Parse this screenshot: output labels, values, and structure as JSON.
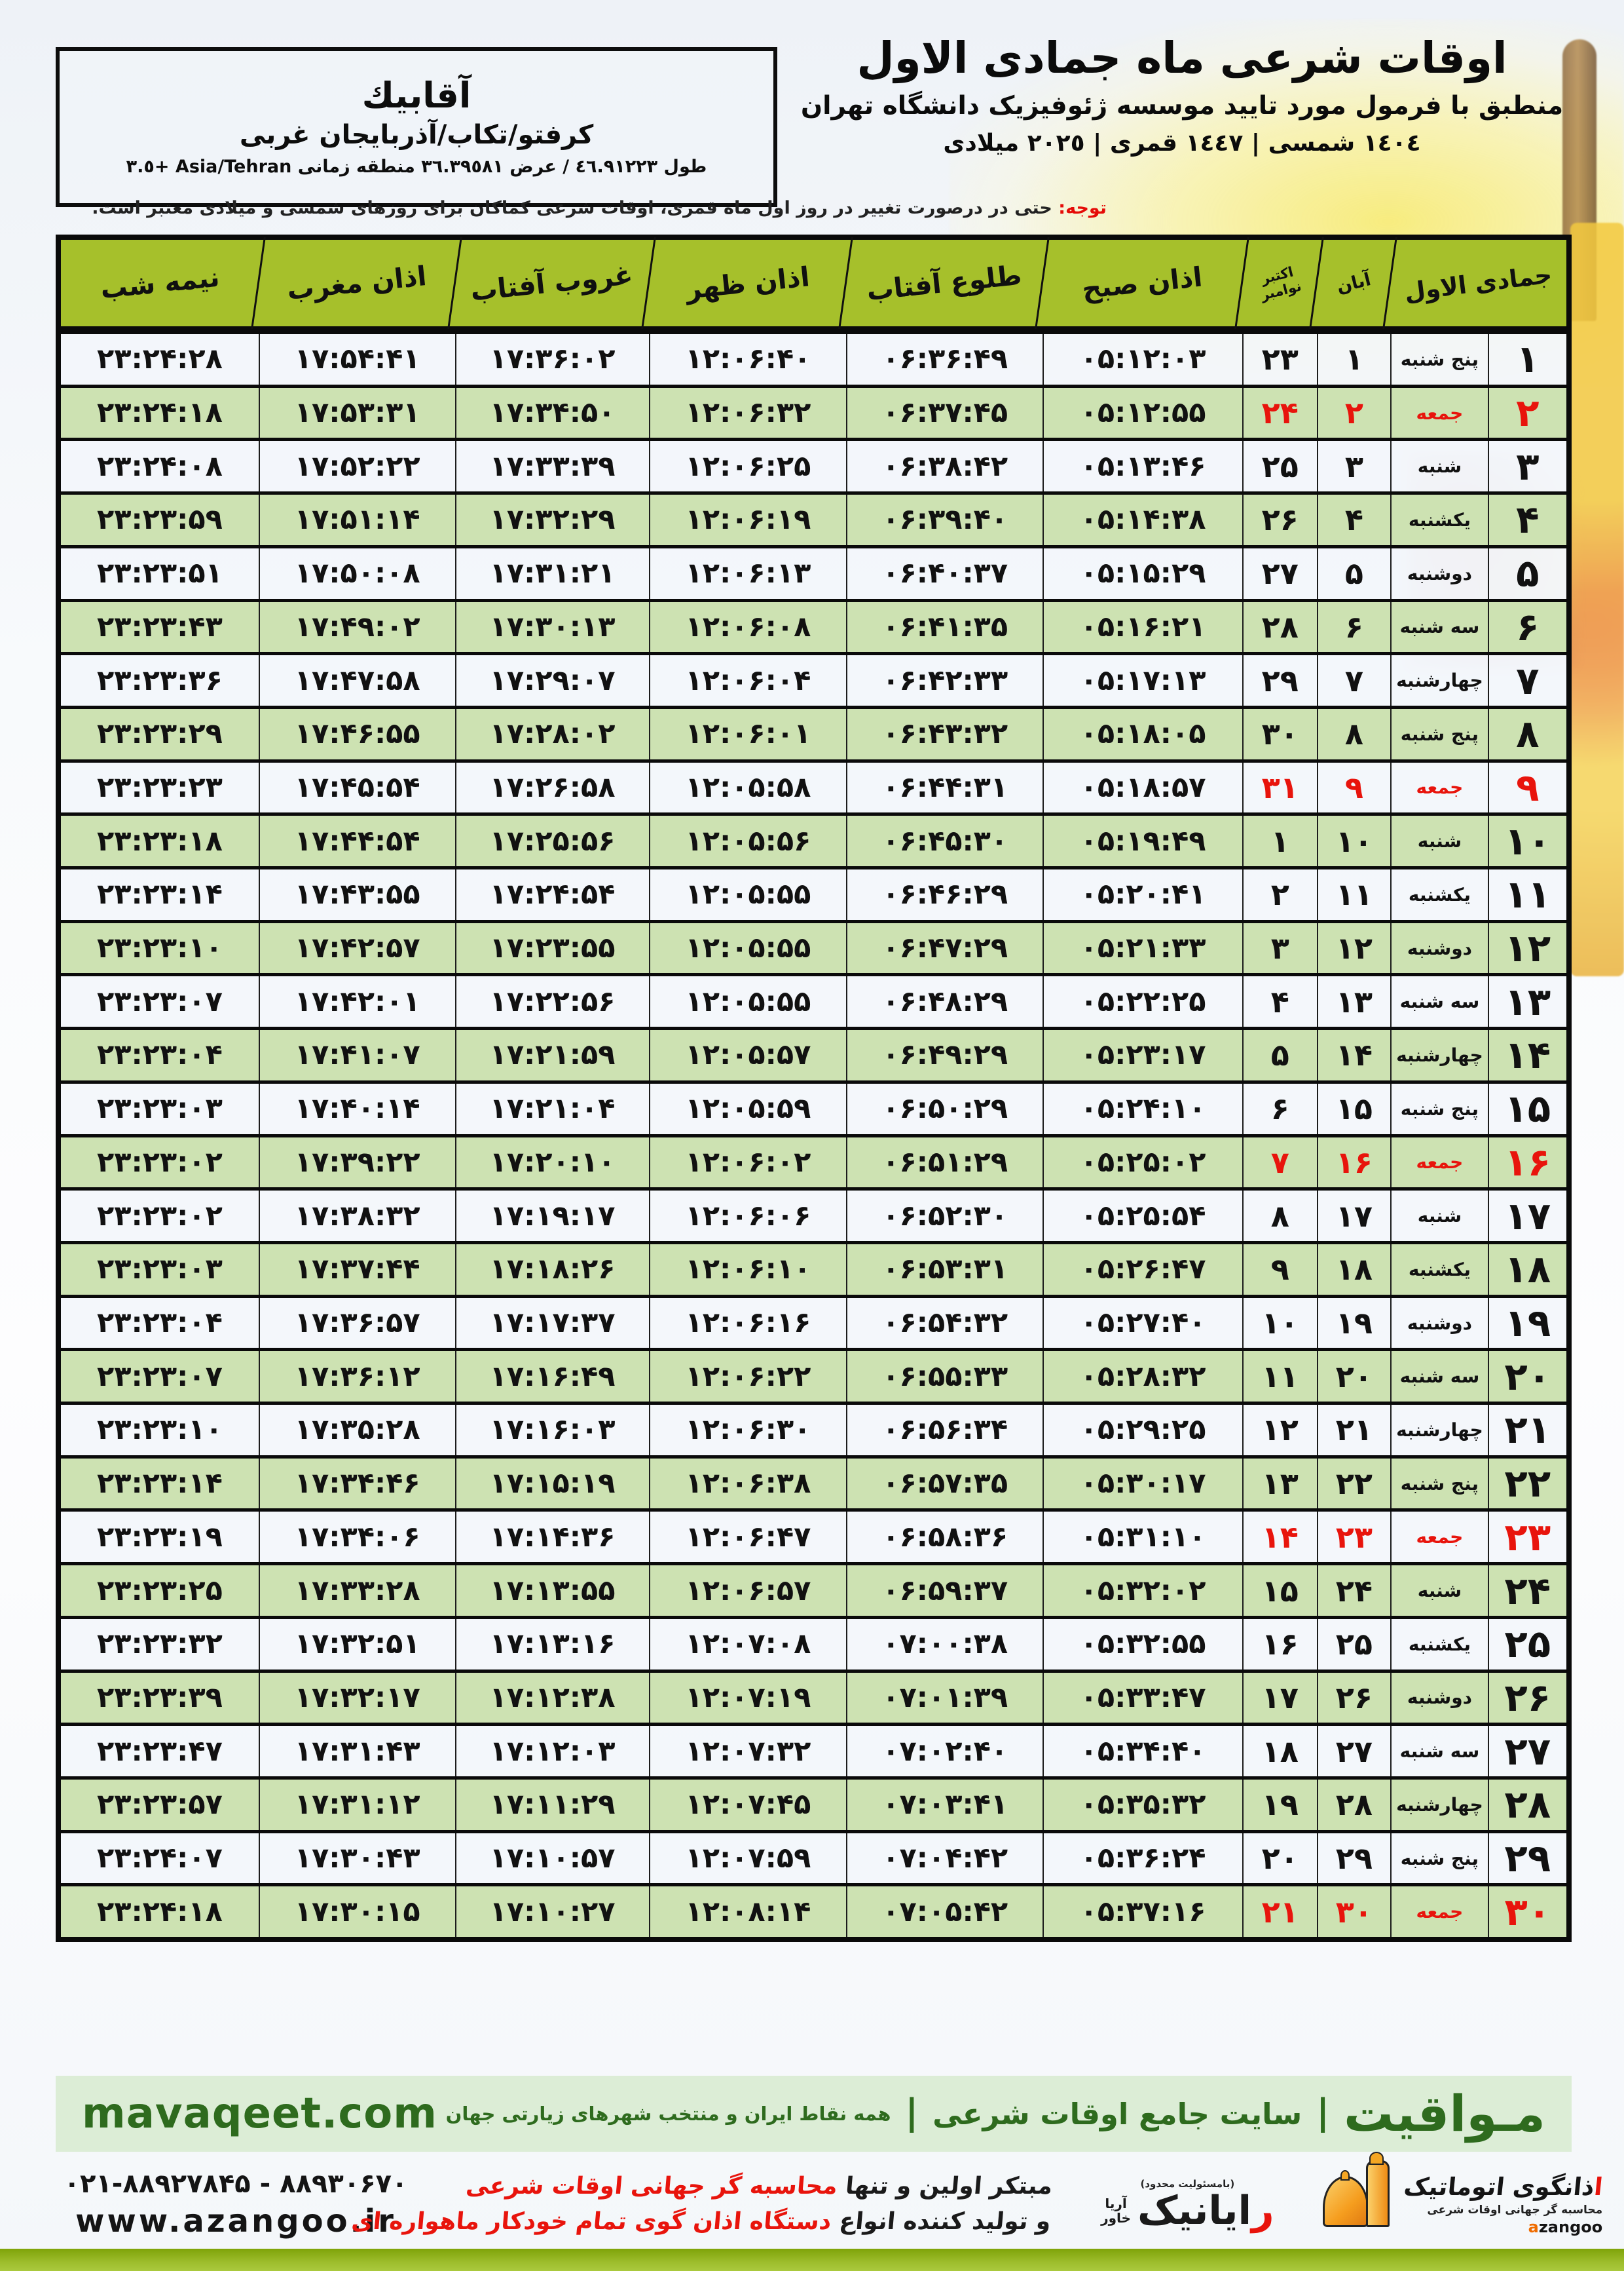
{
  "location": {
    "name": "آقابيك",
    "region": "كرفتو/تكاب/آذربايجان غربی",
    "coords": "طول ٤٦.٩١٢٢٣ / عرض ٣٦.٣٩٥٨١ منطقه زمانی Asia/Tehran +٣.٥"
  },
  "header": {
    "title": "اوقات شرعی ماه جمادی الاول",
    "subtitle": "منطبق با فرمول مورد تایید موسسه ژئوفیزیک دانشگاه تهران",
    "years": "١٤٠٤ شمسی | ١٤٤٧ قمری | ٢٠٢٥ میلادی"
  },
  "notice": {
    "label": "توجه:",
    "text": " حتی در درصورت تغییر در روز اول ماه قمری، اوقات شرعی کماکان برای روزهای شمسی و میلادی معتبر است."
  },
  "table": {
    "headers": {
      "nimeshab": "نیمه شب",
      "maghreb": "اذان مغرب",
      "ghorub": "غروب آفتاب",
      "zohr": "اذان ظهر",
      "tolu": "طلوع آفتاب",
      "sobh": "اذان صبح",
      "greg_top": "اکتبر",
      "greg_bottom": "نوامبر",
      "aban": "آبان",
      "month": "جمادی الاول"
    },
    "rows": [
      {
        "day": "۱",
        "wd": "پنج شنبه",
        "aban": "۱",
        "greg": "۲۳",
        "sobh": "۰۵:۱۲:۰۳",
        "tolu": "۰۶:۳۶:۴۹",
        "zohr": "۱۲:۰۶:۴۰",
        "ghorub": "۱۷:۳۶:۰۲",
        "maghreb": "۱۷:۵۴:۴۱",
        "nime": "۲۳:۲۴:۲۸",
        "fri": false
      },
      {
        "day": "۲",
        "wd": "جمعه",
        "aban": "۲",
        "greg": "۲۴",
        "sobh": "۰۵:۱۲:۵۵",
        "tolu": "۰۶:۳۷:۴۵",
        "zohr": "۱۲:۰۶:۳۲",
        "ghorub": "۱۷:۳۴:۵۰",
        "maghreb": "۱۷:۵۳:۳۱",
        "nime": "۲۳:۲۴:۱۸",
        "fri": true
      },
      {
        "day": "۳",
        "wd": "شنبه",
        "aban": "۳",
        "greg": "۲۵",
        "sobh": "۰۵:۱۳:۴۶",
        "tolu": "۰۶:۳۸:۴۲",
        "zohr": "۱۲:۰۶:۲۵",
        "ghorub": "۱۷:۳۳:۳۹",
        "maghreb": "۱۷:۵۲:۲۲",
        "nime": "۲۳:۲۴:۰۸",
        "fri": false
      },
      {
        "day": "۴",
        "wd": "یکشنبه",
        "aban": "۴",
        "greg": "۲۶",
        "sobh": "۰۵:۱۴:۳۸",
        "tolu": "۰۶:۳۹:۴۰",
        "zohr": "۱۲:۰۶:۱۹",
        "ghorub": "۱۷:۳۲:۲۹",
        "maghreb": "۱۷:۵۱:۱۴",
        "nime": "۲۳:۲۳:۵۹",
        "fri": false
      },
      {
        "day": "۵",
        "wd": "دوشنبه",
        "aban": "۵",
        "greg": "۲۷",
        "sobh": "۰۵:۱۵:۲۹",
        "tolu": "۰۶:۴۰:۳۷",
        "zohr": "۱۲:۰۶:۱۳",
        "ghorub": "۱۷:۳۱:۲۱",
        "maghreb": "۱۷:۵۰:۰۸",
        "nime": "۲۳:۲۳:۵۱",
        "fri": false
      },
      {
        "day": "۶",
        "wd": "سه شنبه",
        "aban": "۶",
        "greg": "۲۸",
        "sobh": "۰۵:۱۶:۲۱",
        "tolu": "۰۶:۴۱:۳۵",
        "zohr": "۱۲:۰۶:۰۸",
        "ghorub": "۱۷:۳۰:۱۳",
        "maghreb": "۱۷:۴۹:۰۲",
        "nime": "۲۳:۲۳:۴۳",
        "fri": false
      },
      {
        "day": "۷",
        "wd": "چهارشنبه",
        "aban": "۷",
        "greg": "۲۹",
        "sobh": "۰۵:۱۷:۱۳",
        "tolu": "۰۶:۴۲:۳۳",
        "zohr": "۱۲:۰۶:۰۴",
        "ghorub": "۱۷:۲۹:۰۷",
        "maghreb": "۱۷:۴۷:۵۸",
        "nime": "۲۳:۲۳:۳۶",
        "fri": false
      },
      {
        "day": "۸",
        "wd": "پنج شنبه",
        "aban": "۸",
        "greg": "۳۰",
        "sobh": "۰۵:۱۸:۰۵",
        "tolu": "۰۶:۴۳:۳۲",
        "zohr": "۱۲:۰۶:۰۱",
        "ghorub": "۱۷:۲۸:۰۲",
        "maghreb": "۱۷:۴۶:۵۵",
        "nime": "۲۳:۲۳:۲۹",
        "fri": false
      },
      {
        "day": "۹",
        "wd": "جمعه",
        "aban": "۹",
        "greg": "۳۱",
        "sobh": "۰۵:۱۸:۵۷",
        "tolu": "۰۶:۴۴:۳۱",
        "zohr": "۱۲:۰۵:۵۸",
        "ghorub": "۱۷:۲۶:۵۸",
        "maghreb": "۱۷:۴۵:۵۴",
        "nime": "۲۳:۲۳:۲۳",
        "fri": true
      },
      {
        "day": "۱۰",
        "wd": "شنبه",
        "aban": "۱۰",
        "greg": "۱",
        "sobh": "۰۵:۱۹:۴۹",
        "tolu": "۰۶:۴۵:۳۰",
        "zohr": "۱۲:۰۵:۵۶",
        "ghorub": "۱۷:۲۵:۵۶",
        "maghreb": "۱۷:۴۴:۵۴",
        "nime": "۲۳:۲۳:۱۸",
        "fri": false
      },
      {
        "day": "۱۱",
        "wd": "یکشنبه",
        "aban": "۱۱",
        "greg": "۲",
        "sobh": "۰۵:۲۰:۴۱",
        "tolu": "۰۶:۴۶:۲۹",
        "zohr": "۱۲:۰۵:۵۵",
        "ghorub": "۱۷:۲۴:۵۴",
        "maghreb": "۱۷:۴۳:۵۵",
        "nime": "۲۳:۲۳:۱۴",
        "fri": false
      },
      {
        "day": "۱۲",
        "wd": "دوشنبه",
        "aban": "۱۲",
        "greg": "۳",
        "sobh": "۰۵:۲۱:۳۳",
        "tolu": "۰۶:۴۷:۲۹",
        "zohr": "۱۲:۰۵:۵۵",
        "ghorub": "۱۷:۲۳:۵۵",
        "maghreb": "۱۷:۴۲:۵۷",
        "nime": "۲۳:۲۳:۱۰",
        "fri": false
      },
      {
        "day": "۱۳",
        "wd": "سه شنبه",
        "aban": "۱۳",
        "greg": "۴",
        "sobh": "۰۵:۲۲:۲۵",
        "tolu": "۰۶:۴۸:۲۹",
        "zohr": "۱۲:۰۵:۵۵",
        "ghorub": "۱۷:۲۲:۵۶",
        "maghreb": "۱۷:۴۲:۰۱",
        "nime": "۲۳:۲۳:۰۷",
        "fri": false
      },
      {
        "day": "۱۴",
        "wd": "چهارشنبه",
        "aban": "۱۴",
        "greg": "۵",
        "sobh": "۰۵:۲۳:۱۷",
        "tolu": "۰۶:۴۹:۲۹",
        "zohr": "۱۲:۰۵:۵۷",
        "ghorub": "۱۷:۲۱:۵۹",
        "maghreb": "۱۷:۴۱:۰۷",
        "nime": "۲۳:۲۳:۰۴",
        "fri": false
      },
      {
        "day": "۱۵",
        "wd": "پنج شنبه",
        "aban": "۱۵",
        "greg": "۶",
        "sobh": "۰۵:۲۴:۱۰",
        "tolu": "۰۶:۵۰:۲۹",
        "zohr": "۱۲:۰۵:۵۹",
        "ghorub": "۱۷:۲۱:۰۴",
        "maghreb": "۱۷:۴۰:۱۴",
        "nime": "۲۳:۲۳:۰۳",
        "fri": false
      },
      {
        "day": "۱۶",
        "wd": "جمعه",
        "aban": "۱۶",
        "greg": "۷",
        "sobh": "۰۵:۲۵:۰۲",
        "tolu": "۰۶:۵۱:۲۹",
        "zohr": "۱۲:۰۶:۰۲",
        "ghorub": "۱۷:۲۰:۱۰",
        "maghreb": "۱۷:۳۹:۲۲",
        "nime": "۲۳:۲۳:۰۲",
        "fri": true
      },
      {
        "day": "۱۷",
        "wd": "شنبه",
        "aban": "۱۷",
        "greg": "۸",
        "sobh": "۰۵:۲۵:۵۴",
        "tolu": "۰۶:۵۲:۳۰",
        "zohr": "۱۲:۰۶:۰۶",
        "ghorub": "۱۷:۱۹:۱۷",
        "maghreb": "۱۷:۳۸:۳۲",
        "nime": "۲۳:۲۳:۰۲",
        "fri": false
      },
      {
        "day": "۱۸",
        "wd": "یکشنبه",
        "aban": "۱۸",
        "greg": "۹",
        "sobh": "۰۵:۲۶:۴۷",
        "tolu": "۰۶:۵۳:۳۱",
        "zohr": "۱۲:۰۶:۱۰",
        "ghorub": "۱۷:۱۸:۲۶",
        "maghreb": "۱۷:۳۷:۴۴",
        "nime": "۲۳:۲۳:۰۳",
        "fri": false
      },
      {
        "day": "۱۹",
        "wd": "دوشنبه",
        "aban": "۱۹",
        "greg": "۱۰",
        "sobh": "۰۵:۲۷:۴۰",
        "tolu": "۰۶:۵۴:۳۲",
        "zohr": "۱۲:۰۶:۱۶",
        "ghorub": "۱۷:۱۷:۳۷",
        "maghreb": "۱۷:۳۶:۵۷",
        "nime": "۲۳:۲۳:۰۴",
        "fri": false
      },
      {
        "day": "۲۰",
        "wd": "سه شنبه",
        "aban": "۲۰",
        "greg": "۱۱",
        "sobh": "۰۵:۲۸:۳۲",
        "tolu": "۰۶:۵۵:۳۳",
        "zohr": "۱۲:۰۶:۲۲",
        "ghorub": "۱۷:۱۶:۴۹",
        "maghreb": "۱۷:۳۶:۱۲",
        "nime": "۲۳:۲۳:۰۷",
        "fri": false
      },
      {
        "day": "۲۱",
        "wd": "چهارشنبه",
        "aban": "۲۱",
        "greg": "۱۲",
        "sobh": "۰۵:۲۹:۲۵",
        "tolu": "۰۶:۵۶:۳۴",
        "zohr": "۱۲:۰۶:۳۰",
        "ghorub": "۱۷:۱۶:۰۳",
        "maghreb": "۱۷:۳۵:۲۸",
        "nime": "۲۳:۲۳:۱۰",
        "fri": false
      },
      {
        "day": "۲۲",
        "wd": "پنج شنبه",
        "aban": "۲۲",
        "greg": "۱۳",
        "sobh": "۰۵:۳۰:۱۷",
        "tolu": "۰۶:۵۷:۳۵",
        "zohr": "۱۲:۰۶:۳۸",
        "ghorub": "۱۷:۱۵:۱۹",
        "maghreb": "۱۷:۳۴:۴۶",
        "nime": "۲۳:۲۳:۱۴",
        "fri": false
      },
      {
        "day": "۲۳",
        "wd": "جمعه",
        "aban": "۲۳",
        "greg": "۱۴",
        "sobh": "۰۵:۳۱:۱۰",
        "tolu": "۰۶:۵۸:۳۶",
        "zohr": "۱۲:۰۶:۴۷",
        "ghorub": "۱۷:۱۴:۳۶",
        "maghreb": "۱۷:۳۴:۰۶",
        "nime": "۲۳:۲۳:۱۹",
        "fri": true
      },
      {
        "day": "۲۴",
        "wd": "شنبه",
        "aban": "۲۴",
        "greg": "۱۵",
        "sobh": "۰۵:۳۲:۰۲",
        "tolu": "۰۶:۵۹:۳۷",
        "zohr": "۱۲:۰۶:۵۷",
        "ghorub": "۱۷:۱۳:۵۵",
        "maghreb": "۱۷:۳۳:۲۸",
        "nime": "۲۳:۲۳:۲۵",
        "fri": false
      },
      {
        "day": "۲۵",
        "wd": "یکشنبه",
        "aban": "۲۵",
        "greg": "۱۶",
        "sobh": "۰۵:۳۲:۵۵",
        "tolu": "۰۷:۰۰:۳۸",
        "zohr": "۱۲:۰۷:۰۸",
        "ghorub": "۱۷:۱۳:۱۶",
        "maghreb": "۱۷:۳۲:۵۱",
        "nime": "۲۳:۲۳:۳۲",
        "fri": false
      },
      {
        "day": "۲۶",
        "wd": "دوشنبه",
        "aban": "۲۶",
        "greg": "۱۷",
        "sobh": "۰۵:۳۳:۴۷",
        "tolu": "۰۷:۰۱:۳۹",
        "zohr": "۱۲:۰۷:۱۹",
        "ghorub": "۱۷:۱۲:۳۸",
        "maghreb": "۱۷:۳۲:۱۷",
        "nime": "۲۳:۲۳:۳۹",
        "fri": false
      },
      {
        "day": "۲۷",
        "wd": "سه شنبه",
        "aban": "۲۷",
        "greg": "۱۸",
        "sobh": "۰۵:۳۴:۴۰",
        "tolu": "۰۷:۰۲:۴۰",
        "zohr": "۱۲:۰۷:۳۲",
        "ghorub": "۱۷:۱۲:۰۳",
        "maghreb": "۱۷:۳۱:۴۳",
        "nime": "۲۳:۲۳:۴۷",
        "fri": false
      },
      {
        "day": "۲۸",
        "wd": "چهارشنبه",
        "aban": "۲۸",
        "greg": "۱۹",
        "sobh": "۰۵:۳۵:۳۲",
        "tolu": "۰۷:۰۳:۴۱",
        "zohr": "۱۲:۰۷:۴۵",
        "ghorub": "۱۷:۱۱:۲۹",
        "maghreb": "۱۷:۳۱:۱۲",
        "nime": "۲۳:۲۳:۵۷",
        "fri": false
      },
      {
        "day": "۲۹",
        "wd": "پنج شنبه",
        "aban": "۲۹",
        "greg": "۲۰",
        "sobh": "۰۵:۳۶:۲۴",
        "tolu": "۰۷:۰۴:۴۲",
        "zohr": "۱۲:۰۷:۵۹",
        "ghorub": "۱۷:۱۰:۵۷",
        "maghreb": "۱۷:۳۰:۴۳",
        "nime": "۲۳:۲۴:۰۷",
        "fri": false
      },
      {
        "day": "۳۰",
        "wd": "جمعه",
        "aban": "۳۰",
        "greg": "۲۱",
        "sobh": "۰۵:۳۷:۱۶",
        "tolu": "۰۷:۰۵:۴۲",
        "zohr": "۱۲:۰۸:۱۴",
        "ghorub": "۱۷:۱۰:۲۷",
        "maghreb": "۱۷:۳۰:۱۵",
        "nime": "۲۳:۲۴:۱۸",
        "fri": true
      }
    ]
  },
  "sitebar": {
    "brand": "مـواقیت",
    "sep": "|",
    "tag1": "سایت جامع اوقات شرعی",
    "tag2": "همه نقاط ایران و منتخب شهرهای زیارتی جهان",
    "domain": "mavaqeet.com"
  },
  "footer": {
    "phone": "۰۲۱-۸۸۹۲۷۸۴۵ - ۸۸۹۳۰۶۷۰",
    "website": "www.azangoo.ir",
    "claim1_black": "مبتکر اولین و تنها ",
    "claim1_red": "محاسبه گر جهانی اوقات شرعی",
    "claim2_black": "و تولید کننده انواع ",
    "claim2_red": "دستگاه اذان گوی تمام خودکار ماهواره ای",
    "rayanik_r": "ر",
    "rayanik_rest": "ایانیک",
    "rayanik_side1": "آریا",
    "rayanik_side2": "خاور",
    "rayanik_note": "(بامسئولیت محدود)",
    "azangoo_alef": "ا",
    "azangoo_title": "ذانگوی اتوماتیک",
    "azangoo_tag": "محاسبه گر جهانی اوقات شرعی",
    "azangoo_latin_a": "a",
    "azangoo_latin_rest": "zangoo"
  },
  "colors": {
    "header_green": "#a6c02b",
    "row_green": "#cde2b2",
    "friday_red": "#e8140c",
    "sitebar_green": "#2e6b1e",
    "bottom_bar": "#9dbd2c"
  }
}
